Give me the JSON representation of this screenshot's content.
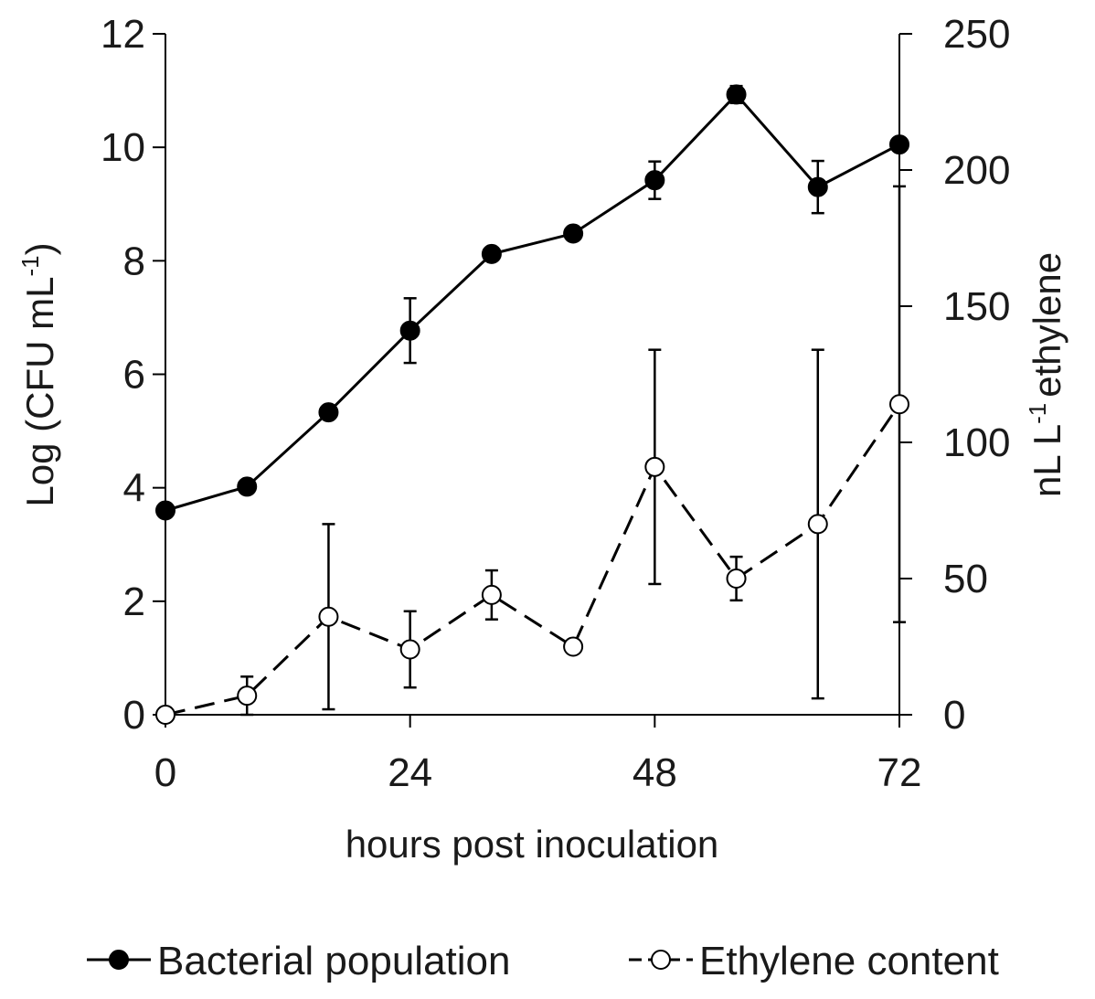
{
  "chart_data": {
    "type": "line",
    "title": "",
    "xlabel": "hours post inoculation",
    "ylabel_left": {
      "text": "Log (CFU mL",
      "sup": "-1",
      "end": ")"
    },
    "ylabel_right": {
      "pre": "nL L",
      "sup": "-1",
      "post": "ethylene"
    },
    "x_ticks": [
      0,
      24,
      48,
      72
    ],
    "xlim": [
      0,
      72
    ],
    "ylim_left": [
      0,
      12
    ],
    "y_ticks_left": [
      0,
      2,
      4,
      6,
      8,
      10,
      12
    ],
    "ylim_right": [
      0,
      250
    ],
    "y_ticks_right": [
      0,
      50,
      100,
      150,
      200,
      250
    ],
    "series": [
      {
        "name": "Bacterial population",
        "axis": "left",
        "marker": "filled-circle",
        "line": "solid",
        "color": "#000000",
        "x": [
          0,
          8,
          16,
          24,
          32,
          40,
          48,
          56,
          64,
          72
        ],
        "values": [
          3.6,
          4.02,
          5.33,
          6.77,
          8.12,
          8.48,
          9.42,
          10.93,
          9.3,
          10.05
        ],
        "errors": [
          0,
          0,
          0,
          0.57,
          0,
          0,
          0.33,
          0.15,
          0.46,
          0.1
        ]
      },
      {
        "name": "Ethylene content",
        "axis": "right",
        "marker": "open-circle",
        "line": "dashed",
        "color": "#000000",
        "x": [
          0,
          8,
          16,
          24,
          32,
          40,
          48,
          56,
          64,
          72
        ],
        "values": [
          0,
          7,
          36,
          24,
          44,
          25,
          91,
          50,
          70,
          114
        ],
        "errors": [
          0,
          7,
          34,
          14,
          9,
          0,
          43,
          8,
          64,
          80
        ]
      }
    ],
    "legend_position": "bottom"
  }
}
